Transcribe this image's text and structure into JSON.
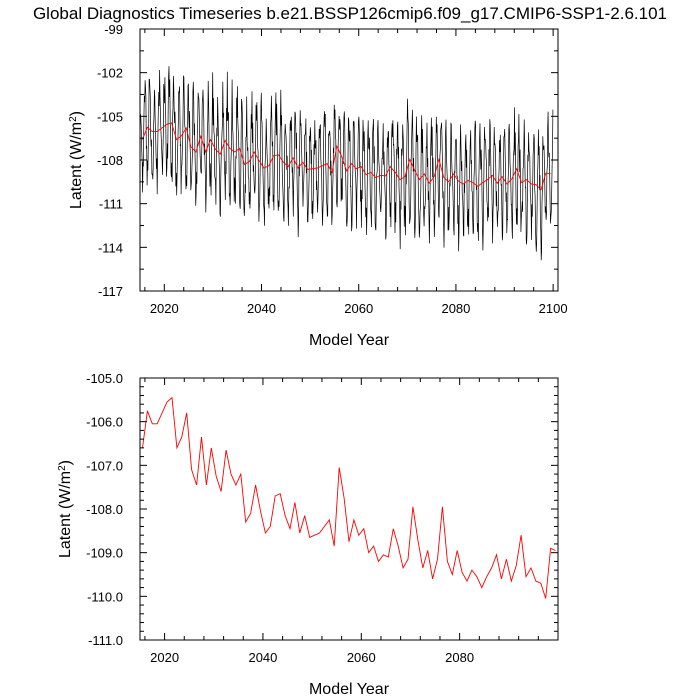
{
  "figure": {
    "title": "Global Diagnostics Timeseries b.e21.BSSP126cmip6.f09_g17.CMIP6-SSP1-2.6.101"
  },
  "chart_data": [
    {
      "type": "line",
      "xlabel": "Model Year",
      "ylabel_main": "Latent (W/m",
      "ylabel_sup": "2",
      "ylabel_close": ")",
      "xlim": [
        2015,
        2101
      ],
      "ylim": [
        -117,
        -99
      ],
      "xticks": [
        2020,
        2040,
        2060,
        2080,
        2100
      ],
      "yticks": [
        -117,
        -114,
        -111,
        -108,
        -105,
        -102,
        -99
      ],
      "ytick_labels": [
        "-117",
        "-114",
        "-111",
        "-108",
        "-105",
        "-102",
        "-99"
      ],
      "grid": false,
      "series": [
        {
          "kind": "monthly",
          "color": "#000000",
          "annual_cycle": [
            -104.6,
            -105.4,
            -106.4,
            -107.6,
            -109.4,
            -110.4,
            -110.8,
            -110.2,
            -108.6,
            -106.6,
            -105.1,
            -104.2
          ],
          "annual_cycle_note_free": true
        },
        {
          "kind": "annual",
          "color": "#ff0000",
          "x_start": 2015,
          "values": [
            -106.6,
            -105.75,
            -106.05,
            -106.05,
            -105.8,
            -105.55,
            -105.45,
            -106.6,
            -106.35,
            -105.8,
            -107.1,
            -107.45,
            -106.35,
            -107.45,
            -106.6,
            -107.25,
            -107.6,
            -106.65,
            -107.2,
            -107.45,
            -107.2,
            -108.3,
            -108.1,
            -107.45,
            -108.05,
            -108.55,
            -108.4,
            -107.7,
            -107.65,
            -108.15,
            -108.45,
            -107.85,
            -108.55,
            -108.15,
            -108.65,
            -108.6,
            -108.55,
            -108.4,
            -108.25,
            -108.85,
            -107.05,
            -107.75,
            -108.75,
            -108.25,
            -108.6,
            -108.45,
            -109.0,
            -108.85,
            -109.2,
            -109.05,
            -109.1,
            -108.45,
            -108.85,
            -109.35,
            -109.15,
            -107.95,
            -108.7,
            -109.35,
            -108.95,
            -109.6,
            -109.15,
            -107.95,
            -109.2,
            -109.5,
            -108.95,
            -109.45,
            -109.65,
            -109.4,
            -109.55,
            -109.8,
            -109.55,
            -109.35,
            -109.05,
            -109.6,
            -109.15,
            -109.65,
            -109.3,
            -108.6,
            -109.55,
            -109.35,
            -109.65,
            -109.7,
            -110.05,
            -108.9,
            -108.95
          ]
        }
      ]
    },
    {
      "type": "line",
      "xlabel": "Model Year",
      "ylabel_main": "Latent (W/m",
      "ylabel_sup": "2",
      "ylabel_close": ")",
      "xlim": [
        2015,
        2100
      ],
      "ylim": [
        -111.0,
        -105.0
      ],
      "xticks": [
        2020,
        2040,
        2060,
        2080
      ],
      "yticks": [
        -111.0,
        -110.0,
        -109.0,
        -108.0,
        -107.0,
        -106.0,
        -105.0
      ],
      "ytick_labels": [
        "-111.0",
        "-110.0",
        "-109.0",
        "-108.0",
        "-107.0",
        "-106.0",
        "-105.0"
      ],
      "grid": false,
      "series": [
        {
          "kind": "annual",
          "color": "#ff0000",
          "x_start": 2015,
          "values": [
            -106.6,
            -105.75,
            -106.05,
            -106.05,
            -105.8,
            -105.55,
            -105.45,
            -106.6,
            -106.35,
            -105.8,
            -107.1,
            -107.45,
            -106.35,
            -107.45,
            -106.6,
            -107.25,
            -107.6,
            -106.65,
            -107.2,
            -107.45,
            -107.2,
            -108.3,
            -108.1,
            -107.45,
            -108.05,
            -108.55,
            -108.4,
            -107.7,
            -107.65,
            -108.15,
            -108.45,
            -107.85,
            -108.55,
            -108.15,
            -108.65,
            -108.6,
            -108.55,
            -108.4,
            -108.25,
            -108.85,
            -107.05,
            -107.75,
            -108.75,
            -108.25,
            -108.6,
            -108.45,
            -109.0,
            -108.85,
            -109.2,
            -109.05,
            -109.1,
            -108.45,
            -108.85,
            -109.35,
            -109.15,
            -107.95,
            -108.7,
            -109.35,
            -108.95,
            -109.6,
            -109.15,
            -107.95,
            -109.2,
            -109.5,
            -108.95,
            -109.45,
            -109.65,
            -109.4,
            -109.55,
            -109.8,
            -109.55,
            -109.35,
            -109.05,
            -109.6,
            -109.15,
            -109.65,
            -109.3,
            -108.6,
            -109.55,
            -109.35,
            -109.65,
            -109.7,
            -110.05,
            -108.9,
            -108.95
          ]
        }
      ]
    }
  ]
}
